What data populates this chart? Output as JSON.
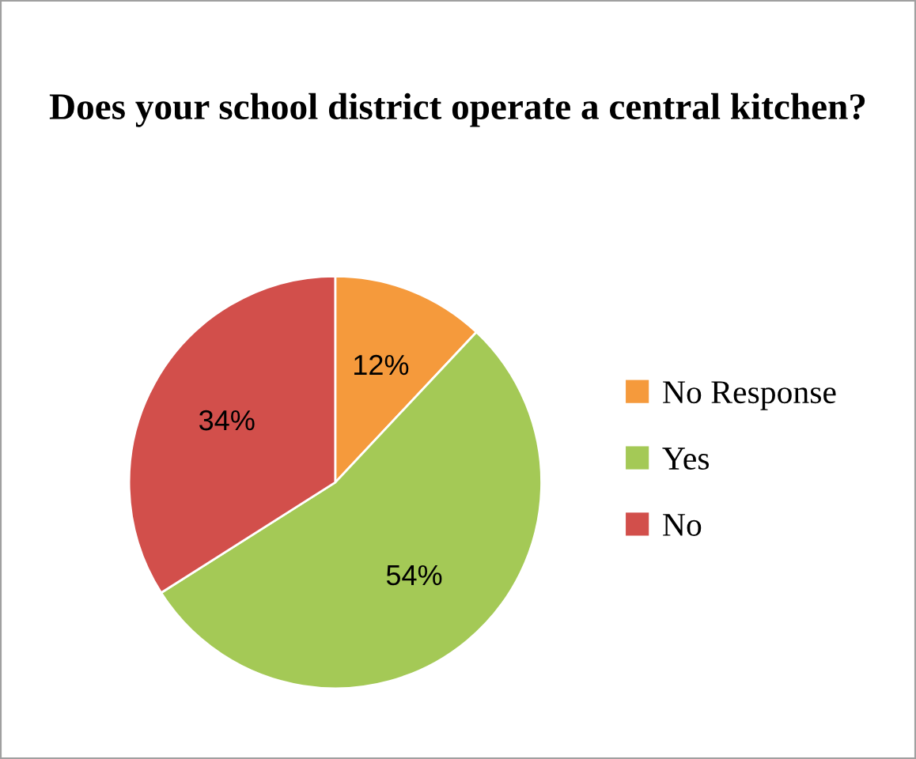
{
  "chart_data": {
    "type": "pie",
    "title": "Does your school district operate a central kitchen?",
    "categories": [
      "No Response",
      "Yes",
      "No"
    ],
    "values": [
      12,
      54,
      34
    ],
    "value_labels": [
      "12%",
      "54%",
      "34%"
    ],
    "colors": [
      "#f59a3c",
      "#a4c956",
      "#d24f4b"
    ],
    "legend": "right"
  }
}
